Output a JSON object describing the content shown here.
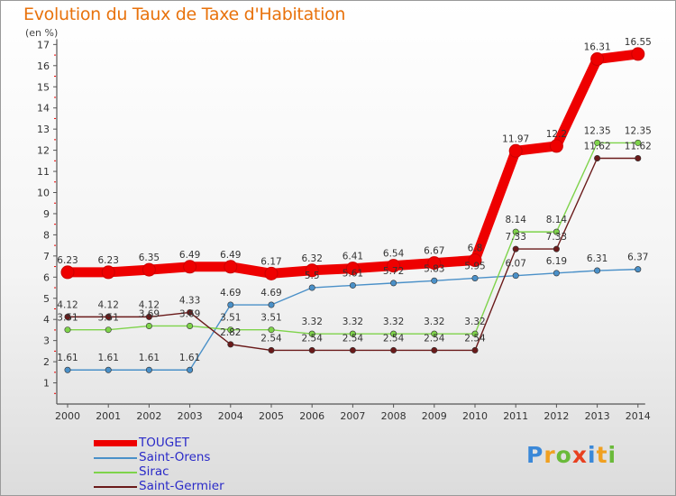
{
  "chart_data": {
    "type": "line",
    "title": "Evolution du Taux de Taxe d'Habitation",
    "unit_label": "(en %)",
    "x": [
      "2000",
      "2001",
      "2002",
      "2003",
      "2004",
      "2005",
      "2006",
      "2007",
      "2008",
      "2009",
      "2010",
      "2011",
      "2012",
      "2013",
      "2014"
    ],
    "ylim": [
      0,
      17
    ],
    "yticks": [
      "1",
      "2",
      "3",
      "4",
      "5",
      "6",
      "7",
      "8",
      "9",
      "10",
      "11",
      "12",
      "13",
      "14",
      "15",
      "16",
      "17"
    ],
    "grid": false,
    "legend_position": "bottom-left",
    "series": [
      {
        "name": "TOUGET",
        "color": "#ee0000",
        "values": [
          6.23,
          6.23,
          6.35,
          6.49,
          6.49,
          6.17,
          6.32,
          6.41,
          6.54,
          6.67,
          6.8,
          11.97,
          12.2,
          16.31,
          16.55
        ],
        "labels": [
          "6.23",
          "6.23",
          "6.35",
          "6.49",
          "6.49",
          "6.17",
          "6.32",
          "6.41",
          "6.54",
          "6.67",
          "6.8",
          "11.97",
          "12.2",
          "16.31",
          "16.55"
        ]
      },
      {
        "name": "Saint-Orens",
        "color": "#4a90c8",
        "values": [
          1.61,
          1.61,
          1.61,
          1.61,
          4.69,
          4.69,
          5.5,
          5.61,
          5.72,
          5.83,
          5.95,
          6.07,
          6.19,
          6.31,
          6.37
        ],
        "labels": [
          "1.61",
          "1.61",
          "1.61",
          "1.61",
          "4.69",
          "4.69",
          "5.5",
          "5.61",
          "5.72",
          "5.83",
          "5.95",
          "6.07",
          "6.19",
          "6.31",
          "6.37"
        ]
      },
      {
        "name": "Sirac",
        "color": "#7ed34a",
        "values": [
          3.51,
          3.51,
          3.69,
          3.69,
          3.51,
          3.51,
          3.32,
          3.32,
          3.32,
          3.32,
          3.32,
          8.14,
          8.14,
          12.35,
          12.35
        ],
        "labels": [
          "3.51",
          "3.51",
          "3.69",
          "3.69",
          "3.51",
          "3.51",
          "3.32",
          "3.32",
          "3.32",
          "3.32",
          "3.32",
          "8.14",
          "8.14",
          "12.35",
          "12.35"
        ]
      },
      {
        "name": "Saint-Germier",
        "color": "#6a1a1a",
        "values": [
          4.12,
          4.12,
          4.12,
          4.33,
          2.82,
          2.54,
          2.54,
          2.54,
          2.54,
          2.54,
          2.54,
          7.33,
          7.33,
          11.62,
          11.62
        ],
        "labels": [
          "4.12",
          "4.12",
          "4.12",
          "4.33",
          "2.82",
          "2.54",
          "2.54",
          "2.54",
          "2.54",
          "2.54",
          "2.54",
          "7.33",
          "7.33",
          "11.62",
          "11.62"
        ]
      }
    ]
  },
  "logo_text": "Proxiti"
}
